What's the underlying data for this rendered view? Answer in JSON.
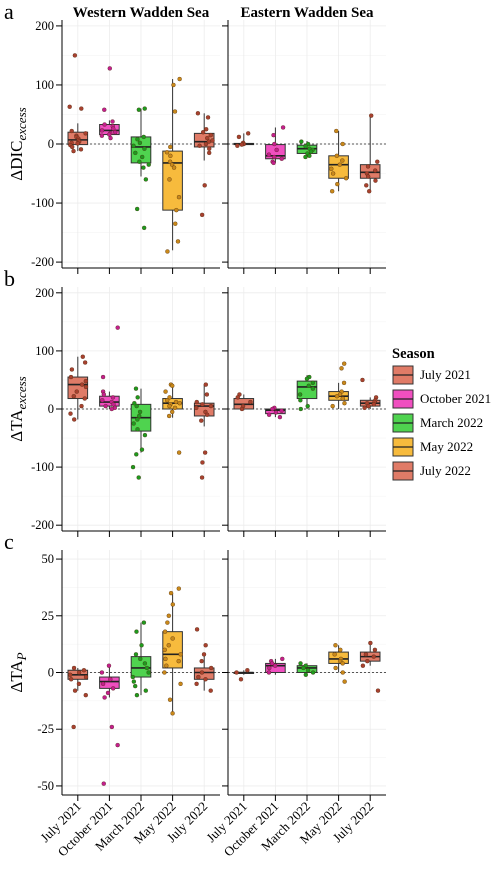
{
  "figure": {
    "facets": [
      "Western Wadden Sea",
      "Eastern Wadden Sea"
    ],
    "x_categories": [
      "July 2021",
      "October 2021",
      "March 2022",
      "May 2022",
      "July 2022"
    ]
  },
  "legend": {
    "title": "Season",
    "placement": "right",
    "items": [
      {
        "label": "July 2021",
        "color": "#E07B67"
      },
      {
        "label": "October 2021",
        "color": "#F04FC0"
      },
      {
        "label": "March 2022",
        "color": "#4FD34F"
      },
      {
        "label": "May 2022",
        "color": "#F7BB3D"
      },
      {
        "label": "July 2022",
        "color": "#E07B67"
      }
    ]
  },
  "point_colors": [
    "#A8412F",
    "#C41F8E",
    "#1E9A1E",
    "#C9891A",
    "#A8412F"
  ],
  "chart_data": [
    {
      "type": "box",
      "panel_label": "a",
      "ylabel_main": "ΔDIC",
      "ylabel_sub": "excess",
      "ylim": [
        -210,
        210
      ],
      "yticks": [
        -200,
        -100,
        0,
        100,
        200
      ],
      "reference_line": 0,
      "grid": true,
      "boxes": {
        "Western Wadden Sea": [
          {
            "category": "July 2021",
            "q1": -1,
            "median": 7,
            "q3": 20,
            "whisker_low": -12,
            "whisker_high": 35,
            "points": [
              150,
              63,
              60,
              22,
              18,
              14,
              12,
              9,
              6,
              4,
              2,
              1,
              -2,
              -5,
              -9,
              -12
            ]
          },
          {
            "category": "October 2021",
            "q1": 16,
            "median": 23,
            "q3": 33,
            "whisker_low": 10,
            "whisker_high": 40,
            "points": [
              128,
              58,
              38,
              33,
              30,
              26,
              23,
              20,
              18,
              16,
              14,
              10
            ]
          },
          {
            "category": "March 2022",
            "q1": -32,
            "median": -5,
            "q3": 12,
            "whisker_low": -55,
            "whisker_high": 60,
            "points": [
              60,
              58,
              12,
              8,
              2,
              -3,
              -8,
              -15,
              -22,
              -30,
              -35,
              -40,
              -60,
              -110,
              -142
            ]
          },
          {
            "category": "May 2022",
            "q1": -112,
            "median": -32,
            "q3": -12,
            "whisker_low": -180,
            "whisker_high": 110,
            "points": [
              110,
              100,
              55,
              -5,
              -14,
              -20,
              -30,
              -35,
              -40,
              -60,
              -90,
              -112,
              -135,
              -165,
              -182
            ]
          },
          {
            "category": "July 2022",
            "q1": -5,
            "median": 4,
            "q3": 18,
            "whisker_low": -28,
            "whisker_high": 52,
            "points": [
              52,
              45,
              25,
              20,
              15,
              10,
              6,
              4,
              0,
              -3,
              -8,
              -15,
              -70,
              -120
            ]
          }
        ],
        "Eastern Wadden Sea": [
          {
            "category": "July 2021",
            "q1": -1,
            "median": 0,
            "q3": 1,
            "whisker_low": -3,
            "whisker_high": 18,
            "points": [
              18,
              12,
              2,
              0,
              -1,
              -3
            ]
          },
          {
            "category": "October 2021",
            "q1": -25,
            "median": -20,
            "q3": -1,
            "whisker_low": -32,
            "whisker_high": 28,
            "points": [
              28,
              15,
              0,
              -10,
              -18,
              -22,
              -25,
              -30,
              -32
            ]
          },
          {
            "category": "March 2022",
            "q1": -16,
            "median": -8,
            "q3": -2,
            "whisker_low": -22,
            "whisker_high": 5,
            "points": [
              4,
              0,
              -4,
              -8,
              -10,
              -13,
              -16,
              -20,
              -22
            ]
          },
          {
            "category": "May 2022",
            "q1": -58,
            "median": -35,
            "q3": -20,
            "whisker_low": -80,
            "whisker_high": 22,
            "points": [
              22,
              0,
              -20,
              -28,
              -35,
              -42,
              -50,
              -58,
              -68,
              -80
            ]
          },
          {
            "category": "July 2022",
            "q1": -58,
            "median": -48,
            "q3": -35,
            "whisker_low": -80,
            "whisker_high": 48,
            "points": [
              48,
              -30,
              -38,
              -45,
              -50,
              -55,
              -62,
              -70,
              -80
            ]
          }
        ]
      }
    },
    {
      "type": "box",
      "panel_label": "b",
      "ylabel_main": "ΔTA",
      "ylabel_sub": "excess",
      "ylim": [
        -210,
        210
      ],
      "yticks": [
        -200,
        -100,
        0,
        100,
        200
      ],
      "reference_line": 0,
      "grid": true,
      "boxes": {
        "Western Wadden Sea": [
          {
            "category": "July 2021",
            "q1": 18,
            "median": 42,
            "q3": 55,
            "whisker_low": -18,
            "whisker_high": 90,
            "points": [
              90,
              80,
              68,
              55,
              48,
              42,
              38,
              30,
              22,
              18,
              5,
              -8,
              -18
            ]
          },
          {
            "category": "October 2021",
            "q1": 5,
            "median": 12,
            "q3": 22,
            "whisker_low": 0,
            "whisker_high": 30,
            "points": [
              140,
              55,
              30,
              25,
              20,
              15,
              12,
              8,
              5,
              2,
              0
            ]
          },
          {
            "category": "March 2022",
            "q1": -38,
            "median": -15,
            "q3": 8,
            "whisker_low": -75,
            "whisker_high": 35,
            "points": [
              35,
              20,
              10,
              5,
              -5,
              -12,
              -18,
              -25,
              -35,
              -45,
              -70,
              -78,
              -100,
              -118
            ]
          },
          {
            "category": "May 2022",
            "q1": 0,
            "median": 10,
            "q3": 18,
            "whisker_low": -15,
            "whisker_high": 40,
            "points": [
              42,
              40,
              30,
              20,
              15,
              12,
              10,
              8,
              5,
              2,
              -5,
              -12,
              -75
            ]
          },
          {
            "category": "July 2022",
            "q1": -12,
            "median": 5,
            "q3": 10,
            "whisker_low": -30,
            "whisker_high": 42,
            "points": [
              42,
              25,
              12,
              8,
              5,
              2,
              -5,
              -10,
              -20,
              -75,
              -92,
              -118
            ]
          }
        ],
        "Eastern Wadden Sea": [
          {
            "category": "July 2021",
            "q1": 0,
            "median": 8,
            "q3": 18,
            "whisker_low": -2,
            "whisker_high": 25,
            "points": [
              25,
              20,
              12,
              5,
              0
            ]
          },
          {
            "category": "October 2021",
            "q1": -8,
            "median": -2,
            "q3": 0,
            "whisker_low": -14,
            "whisker_high": 2,
            "points": [
              2,
              0,
              -3,
              -6,
              -10,
              -14
            ]
          },
          {
            "category": "March 2022",
            "q1": 18,
            "median": 38,
            "q3": 48,
            "whisker_low": 0,
            "whisker_high": 58,
            "points": [
              55,
              52,
              45,
              40,
              35,
              25,
              15,
              5,
              0
            ]
          },
          {
            "category": "May 2022",
            "q1": 15,
            "median": 22,
            "q3": 30,
            "whisker_low": 0,
            "whisker_high": 45,
            "points": [
              78,
              70,
              45,
              30,
              25,
              22,
              18,
              10,
              5
            ]
          },
          {
            "category": "July 2022",
            "q1": 5,
            "median": 10,
            "q3": 15,
            "whisker_low": 0,
            "whisker_high": 20,
            "points": [
              50,
              20,
              15,
              12,
              10,
              8,
              5,
              2
            ]
          }
        ]
      }
    },
    {
      "type": "box",
      "panel_label": "c",
      "ylabel_main": "ΔTA",
      "ylabel_sub": "P",
      "ylim": [
        -54,
        54
      ],
      "yticks": [
        -50,
        -25,
        0,
        25,
        50
      ],
      "reference_line": 0,
      "grid": true,
      "boxes": {
        "Western Wadden Sea": [
          {
            "category": "July 2021",
            "q1": -3,
            "median": -1,
            "q3": 1,
            "whisker_low": -8,
            "whisker_high": 2,
            "points": [
              2,
              1,
              0,
              -1,
              -2,
              -3,
              -5,
              -8,
              -10,
              -24
            ]
          },
          {
            "category": "October 2021",
            "q1": -7,
            "median": -4,
            "q3": -2,
            "whisker_low": -11,
            "whisker_high": 3,
            "points": [
              3,
              0,
              -3,
              -5,
              -7,
              -9,
              -11,
              -24,
              -32,
              -49
            ]
          },
          {
            "category": "March 2022",
            "q1": -2,
            "median": 2,
            "q3": 7,
            "whisker_low": -10,
            "whisker_high": 22,
            "points": [
              22,
              18,
              12,
              8,
              6,
              4,
              2,
              0,
              -2,
              -4,
              -6,
              -8,
              -10
            ]
          },
          {
            "category": "May 2022",
            "q1": 2,
            "median": 8,
            "q3": 18,
            "whisker_low": -18,
            "whisker_high": 35,
            "points": [
              37,
              35,
              30,
              25,
              22,
              18,
              15,
              12,
              10,
              8,
              6,
              5,
              3,
              0,
              -5,
              -12,
              -18
            ]
          },
          {
            "category": "July 2022",
            "q1": -3,
            "median": 0,
            "q3": 2,
            "whisker_low": -8,
            "whisker_high": 8,
            "points": [
              19,
              12,
              8,
              5,
              2,
              0,
              -2,
              -3,
              -5,
              -8
            ]
          }
        ],
        "Eastern Wadden Sea": [
          {
            "category": "July 2021",
            "q1": 0,
            "median": 0,
            "q3": 0,
            "whisker_low": -1,
            "whisker_high": 1,
            "points": [
              1,
              0,
              -3
            ]
          },
          {
            "category": "October 2021",
            "q1": 0,
            "median": 3,
            "q3": 4,
            "whisker_low": -1,
            "whisker_high": 6,
            "points": [
              6,
              5,
              4,
              3,
              2,
              0
            ]
          },
          {
            "category": "March 2022",
            "q1": 0,
            "median": 2,
            "q3": 3,
            "whisker_low": -1,
            "whisker_high": 4,
            "points": [
              4,
              3,
              2,
              1,
              0,
              -1
            ]
          },
          {
            "category": "May 2022",
            "q1": 4,
            "median": 6,
            "q3": 9,
            "whisker_low": 0,
            "whisker_high": 12,
            "points": [
              12,
              10,
              8,
              6,
              5,
              4,
              2,
              0,
              -4
            ]
          },
          {
            "category": "July 2022",
            "q1": 5,
            "median": 7,
            "q3": 9,
            "whisker_low": 3,
            "whisker_high": 13,
            "points": [
              13,
              10,
              8,
              7,
              5,
              3,
              -8
            ]
          }
        ]
      }
    }
  ]
}
